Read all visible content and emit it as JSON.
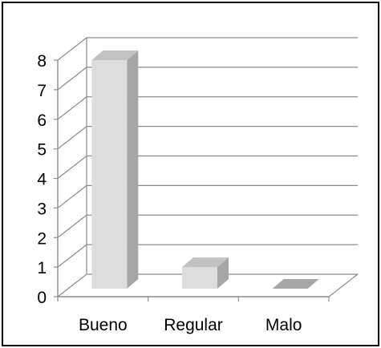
{
  "chart_data": {
    "type": "bar",
    "style": "3d-column",
    "categories": [
      "Bueno",
      "Regular",
      "Malo"
    ],
    "values": [
      8,
      1,
      0
    ],
    "ylim": [
      0,
      8
    ],
    "yticks": [
      "0",
      "1",
      "2",
      "3",
      "4",
      "5",
      "6",
      "7",
      "8"
    ],
    "grid": true,
    "legend": "none",
    "colors": {
      "bar_front": "#dcdcdc",
      "bar_side": "#a6a6a6",
      "bar_top": "#c2c2c2",
      "grid": "#8c8c8c"
    }
  }
}
